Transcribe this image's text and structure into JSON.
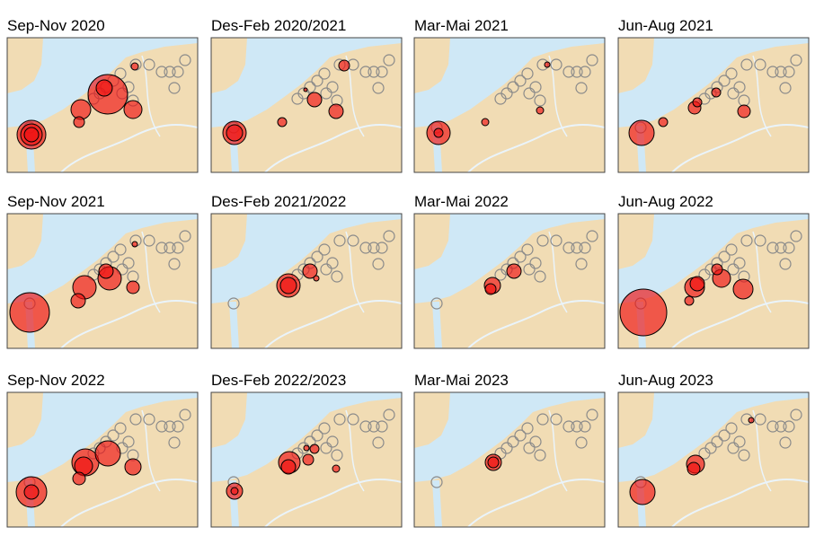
{
  "panels": [
    {
      "title": "Sep-Nov 2020"
    },
    {
      "title": "Des-Feb 2020/2021"
    },
    {
      "title": "Mar-Mai 2021"
    },
    {
      "title": "Jun-Aug 2021"
    },
    {
      "title": "Sep-Nov 2021"
    },
    {
      "title": "Des-Feb 2021/2022"
    },
    {
      "title": "Mar-Mai 2022"
    },
    {
      "title": "Jun-Aug 2022"
    },
    {
      "title": "Sep-Nov 2022"
    },
    {
      "title": "Des-Feb 2022/2023"
    },
    {
      "title": "Mar-Mai 2023"
    },
    {
      "title": "Jun-Aug 2023"
    }
  ]
}
